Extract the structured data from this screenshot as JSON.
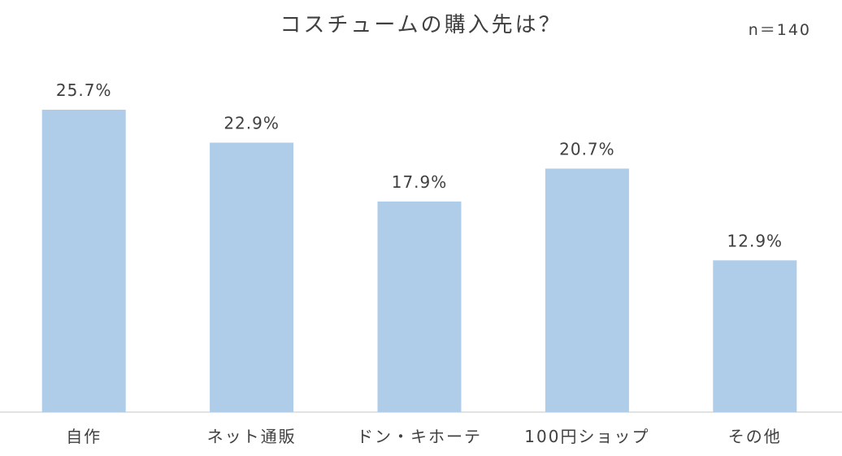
{
  "chart_data": {
    "type": "bar",
    "title": "コスチュームの購入先は？",
    "sample_size": "n＝140",
    "categories": [
      "自作",
      "ネット通販",
      "ドン・キホーテ",
      "100円ショップ",
      "その他"
    ],
    "values": [
      25.7,
      22.9,
      17.9,
      20.7,
      12.9
    ],
    "data_labels": [
      "25.7%",
      "22.9%",
      "17.9%",
      "20.7%",
      "12.9%"
    ],
    "ylim": [
      0,
      25.7
    ],
    "grid": false,
    "legend": "none",
    "bar_color": "#afcde9",
    "text_color": "#404040"
  }
}
